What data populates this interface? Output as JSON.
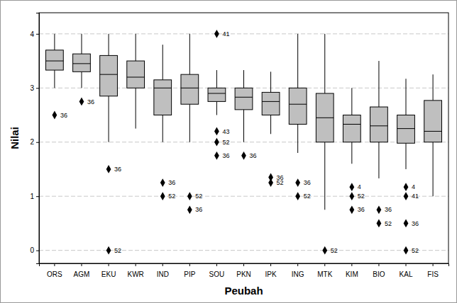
{
  "chart_data": {
    "type": "box",
    "x_label": "Peubah",
    "y_label": "Nilai",
    "categories": [
      "ORS",
      "AGM",
      "EKU",
      "KWR",
      "IND",
      "PIP",
      "SOU",
      "PKN",
      "IPK",
      "ING",
      "MTK",
      "KIM",
      "BIO",
      "KAL",
      "FIS"
    ],
    "boxes": [
      {
        "whisker_low": 3.0,
        "q1": 3.33,
        "median": 3.5,
        "q3": 3.7,
        "whisker_high": 4.0,
        "outliers": [
          {
            "value": 2.5,
            "label": "36"
          }
        ]
      },
      {
        "whisker_low": 3.0,
        "q1": 3.3,
        "median": 3.45,
        "q3": 3.63,
        "whisker_high": 4.0,
        "outliers": [
          {
            "value": 2.75,
            "label": "36"
          }
        ]
      },
      {
        "whisker_low": 2.0,
        "q1": 2.85,
        "median": 3.25,
        "q3": 3.6,
        "whisker_high": 4.0,
        "outliers": [
          {
            "value": 1.5,
            "label": "36"
          },
          {
            "value": 0,
            "label": "52"
          }
        ]
      },
      {
        "whisker_low": 2.25,
        "q1": 3.0,
        "median": 3.2,
        "q3": 3.5,
        "whisker_high": 4.0,
        "outliers": []
      },
      {
        "whisker_low": 2.0,
        "q1": 2.5,
        "median": 3.0,
        "q3": 3.15,
        "whisker_high": 3.8,
        "outliers": [
          {
            "value": 1.25,
            "label": "36"
          },
          {
            "value": 1.0,
            "label": "52"
          }
        ]
      },
      {
        "whisker_low": 2.0,
        "q1": 2.7,
        "median": 3.0,
        "q3": 3.25,
        "whisker_high": 4.0,
        "outliers": [
          {
            "value": 1.0,
            "label": "52"
          },
          {
            "value": 0.75,
            "label": "36"
          }
        ]
      },
      {
        "whisker_low": 2.5,
        "q1": 2.75,
        "median": 2.9,
        "q3": 3.0,
        "whisker_high": 3.33,
        "outliers": [
          {
            "value": 4.0,
            "label": "41"
          },
          {
            "value": 2.2,
            "label": "43"
          },
          {
            "value": 2.0,
            "label": "52"
          },
          {
            "value": 1.75,
            "label": "36"
          }
        ]
      },
      {
        "whisker_low": 2.0,
        "q1": 2.6,
        "median": 2.83,
        "q3": 3.0,
        "whisker_high": 3.33,
        "outliers": [
          {
            "value": 1.75,
            "label": "36"
          }
        ]
      },
      {
        "whisker_low": 2.15,
        "q1": 2.5,
        "median": 2.75,
        "q3": 2.92,
        "whisker_high": 3.3,
        "outliers": [
          {
            "value": 1.35,
            "label": "36"
          },
          {
            "value": 1.25,
            "label": "52"
          }
        ]
      },
      {
        "whisker_low": 1.8,
        "q1": 2.33,
        "median": 2.7,
        "q3": 3.0,
        "whisker_high": 4.0,
        "outliers": [
          {
            "value": 1.25,
            "label": "36"
          },
          {
            "value": 1.0,
            "label": "52"
          }
        ]
      },
      {
        "whisker_low": 0.75,
        "q1": 2.0,
        "median": 2.45,
        "q3": 2.9,
        "whisker_high": 4.0,
        "outliers": [
          {
            "value": 0,
            "label": "52"
          }
        ]
      },
      {
        "whisker_low": 1.6,
        "q1": 2.0,
        "median": 2.33,
        "q3": 2.5,
        "whisker_high": 3.0,
        "outliers": [
          {
            "value": 1.17,
            "label": "4"
          },
          {
            "value": 1.0,
            "label": "52"
          },
          {
            "value": 0.75,
            "label": "36"
          }
        ]
      },
      {
        "whisker_low": 1.33,
        "q1": 2.0,
        "median": 2.3,
        "q3": 2.65,
        "whisker_high": 3.5,
        "outliers": [
          {
            "value": 0.75,
            "label": "36"
          },
          {
            "value": 0.5,
            "label": "52"
          }
        ]
      },
      {
        "whisker_low": 1.5,
        "q1": 1.98,
        "median": 2.25,
        "q3": 2.5,
        "whisker_high": 3.17,
        "outliers": [
          {
            "value": 1.17,
            "label": "4"
          },
          {
            "value": 1.0,
            "label": "41"
          },
          {
            "value": 0.5,
            "label": "36"
          },
          {
            "value": 0,
            "label": "52"
          }
        ]
      },
      {
        "whisker_low": 1.0,
        "q1": 2.0,
        "median": 2.2,
        "q3": 2.77,
        "whisker_high": 3.25,
        "outliers": []
      }
    ],
    "ylim": [
      -0.24,
      4.39
    ],
    "yticks": [
      0,
      1,
      2,
      3,
      4
    ],
    "grid": true,
    "color": "#bfbfbf"
  }
}
